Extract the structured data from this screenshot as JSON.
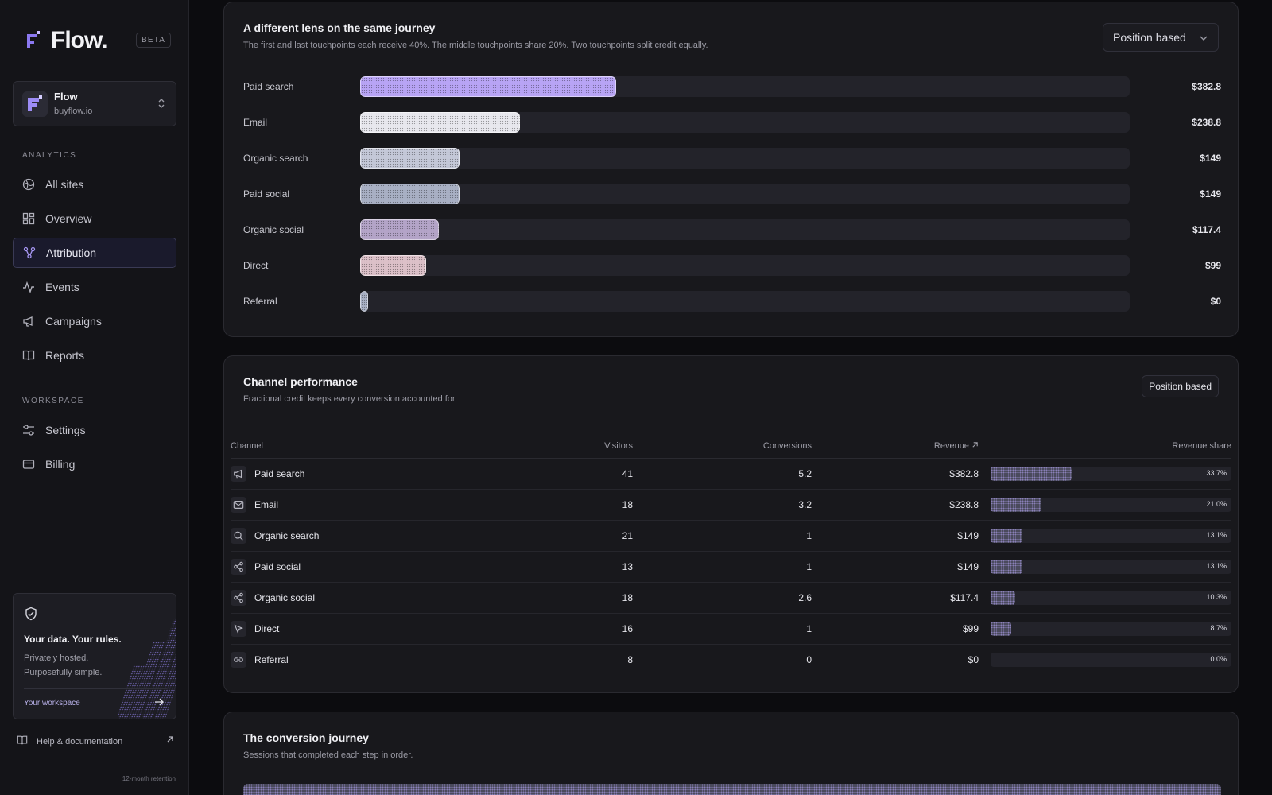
{
  "app": {
    "logo_text": "Flow.",
    "beta_badge": "BETA"
  },
  "org": {
    "name": "Flow",
    "domain": "buyflow.io"
  },
  "sidebar": {
    "analytics_label": "ANALYTICS",
    "workspace_label": "WORKSPACE",
    "analytics_items": [
      {
        "label": "All sites",
        "icon": "globe-icon"
      },
      {
        "label": "Overview",
        "icon": "dashboard-icon"
      },
      {
        "label": "Attribution",
        "icon": "attribution-icon",
        "active": true
      },
      {
        "label": "Events",
        "icon": "activity-icon"
      },
      {
        "label": "Campaigns",
        "icon": "megaphone-icon"
      },
      {
        "label": "Reports",
        "icon": "book-icon"
      }
    ],
    "workspace_items": [
      {
        "label": "Settings",
        "icon": "sliders-icon"
      },
      {
        "label": "Billing",
        "icon": "card-icon"
      }
    ],
    "promo": {
      "title": "Your data. Your rules.",
      "text": "Privately hosted. Purposefully simple.",
      "link": "Your workspace"
    },
    "help": "Help & documentation",
    "retention": "12-month retention"
  },
  "model_card": {
    "title": "A different lens on the same journey",
    "subtitle": "The first and last touchpoints each receive 40%. The middle touchpoints share 20%. Two touchpoints split credit equally.",
    "model_select": "Position based"
  },
  "chart_data": {
    "type": "bar",
    "categories": [
      "Paid search",
      "Email",
      "Organic search",
      "Paid social",
      "Organic social",
      "Direct",
      "Referral"
    ],
    "values": [
      382.8,
      238.8,
      149,
      149,
      117.4,
      99,
      0
    ],
    "value_labels": [
      "$382.8",
      "$238.8",
      "$149",
      "$149",
      "$117.4",
      "$99",
      "$0"
    ],
    "colors": [
      "#b8a4f5",
      "#e8e8ee",
      "#c4c8d8",
      "#a8b0c4",
      "#b4a4c8",
      "#dcc0c8",
      "#a8b0c4"
    ],
    "xlim": [
      0,
      1150
    ]
  },
  "performance": {
    "title": "Channel performance",
    "subtitle": "Fractional credit keeps every conversion accounted for.",
    "model_pill": "Position based",
    "columns": {
      "channel": "Channel",
      "visitors": "Visitors",
      "conversions": "Conversions",
      "revenue": "Revenue",
      "share": "Revenue share"
    },
    "rows": [
      {
        "channel": "Paid search",
        "icon": "megaphone-icon",
        "visitors": "41",
        "conversions": "5.2",
        "revenue": "$382.8",
        "share": "33.7%",
        "share_value": 33.7
      },
      {
        "channel": "Email",
        "icon": "mail-icon",
        "visitors": "18",
        "conversions": "3.2",
        "revenue": "$238.8",
        "share": "21.0%",
        "share_value": 21.0
      },
      {
        "channel": "Organic search",
        "icon": "search-icon",
        "visitors": "21",
        "conversions": "1",
        "revenue": "$149",
        "share": "13.1%",
        "share_value": 13.1
      },
      {
        "channel": "Paid social",
        "icon": "share-icon",
        "visitors": "13",
        "conversions": "1",
        "revenue": "$149",
        "share": "13.1%",
        "share_value": 13.1
      },
      {
        "channel": "Organic social",
        "icon": "share-icon",
        "visitors": "18",
        "conversions": "2.6",
        "revenue": "$117.4",
        "share": "10.3%",
        "share_value": 10.3
      },
      {
        "channel": "Direct",
        "icon": "cursor-icon",
        "visitors": "16",
        "conversions": "1",
        "revenue": "$99",
        "share": "8.7%",
        "share_value": 8.7
      },
      {
        "channel": "Referral",
        "icon": "link-icon",
        "visitors": "8",
        "conversions": "0",
        "revenue": "$0",
        "share": "0.0%",
        "share_value": 0.0
      }
    ]
  },
  "journey": {
    "title": "The conversion journey",
    "subtitle": "Sessions that completed each step in order."
  }
}
